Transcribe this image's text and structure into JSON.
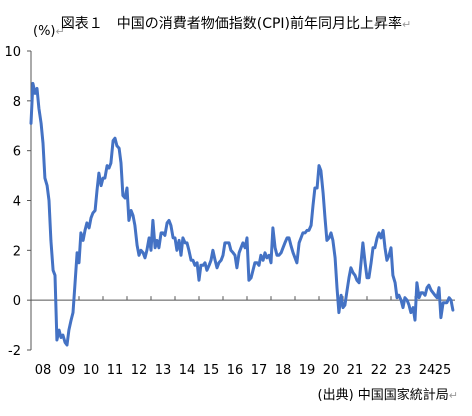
{
  "title": "図表１　中国の消費者物価指数(CPI)前年同月比上昇率",
  "title_mark": "↵",
  "unit_label": "(%)",
  "unit_mark": "↵",
  "source": "(出典) 中国国家統計局",
  "source_mark": "↵",
  "colors": {
    "line": "#4472C4",
    "axis": "#555555",
    "text": "#000000"
  },
  "chart_data": {
    "type": "line",
    "title": "図表１　中国の消費者物価指数(CPI)前年同月比上昇率",
    "xlabel": "",
    "ylabel": "(%)",
    "ylim": [
      -2,
      10
    ],
    "xlim": [
      2008,
      2025.667
    ],
    "yticks": [
      -2,
      0,
      2,
      4,
      6,
      8,
      10
    ],
    "xtick_labels": [
      "08",
      "09",
      "10",
      "11",
      "12",
      "13",
      "14",
      "15",
      "16",
      "17",
      "18",
      "19",
      "20",
      "21",
      "22",
      "23",
      "24",
      "25"
    ],
    "grid": false,
    "legend": "none",
    "x_unit": "year (monthly data)",
    "series": [
      {
        "points": [
          [
            2008.0,
            7.1
          ],
          [
            2008.08,
            8.7
          ],
          [
            2008.17,
            8.3
          ],
          [
            2008.25,
            8.5
          ],
          [
            2008.33,
            7.7
          ],
          [
            2008.42,
            7.1
          ],
          [
            2008.5,
            6.3
          ],
          [
            2008.58,
            4.9
          ],
          [
            2008.67,
            4.6
          ],
          [
            2008.75,
            4.0
          ],
          [
            2008.83,
            2.4
          ],
          [
            2008.92,
            1.2
          ],
          [
            2009.0,
            1.0
          ],
          [
            2009.08,
            -1.6
          ],
          [
            2009.17,
            -1.2
          ],
          [
            2009.25,
            -1.5
          ],
          [
            2009.33,
            -1.4
          ],
          [
            2009.42,
            -1.7
          ],
          [
            2009.5,
            -1.8
          ],
          [
            2009.58,
            -1.2
          ],
          [
            2009.67,
            -0.8
          ],
          [
            2009.75,
            -0.5
          ],
          [
            2009.83,
            0.6
          ],
          [
            2009.92,
            1.9
          ],
          [
            2010.0,
            1.5
          ],
          [
            2010.08,
            2.7
          ],
          [
            2010.17,
            2.4
          ],
          [
            2010.25,
            2.8
          ],
          [
            2010.33,
            3.1
          ],
          [
            2010.42,
            2.9
          ],
          [
            2010.5,
            3.3
          ],
          [
            2010.58,
            3.5
          ],
          [
            2010.67,
            3.6
          ],
          [
            2010.75,
            4.4
          ],
          [
            2010.83,
            5.1
          ],
          [
            2010.92,
            4.6
          ],
          [
            2011.0,
            4.9
          ],
          [
            2011.08,
            4.9
          ],
          [
            2011.17,
            5.4
          ],
          [
            2011.25,
            5.3
          ],
          [
            2011.33,
            5.5
          ],
          [
            2011.42,
            6.4
          ],
          [
            2011.5,
            6.5
          ],
          [
            2011.58,
            6.2
          ],
          [
            2011.67,
            6.1
          ],
          [
            2011.75,
            5.5
          ],
          [
            2011.83,
            4.2
          ],
          [
            2011.92,
            4.1
          ],
          [
            2012.0,
            4.5
          ],
          [
            2012.08,
            3.2
          ],
          [
            2012.17,
            3.6
          ],
          [
            2012.25,
            3.4
          ],
          [
            2012.33,
            3.0
          ],
          [
            2012.42,
            2.2
          ],
          [
            2012.5,
            1.8
          ],
          [
            2012.58,
            2.0
          ],
          [
            2012.67,
            1.9
          ],
          [
            2012.75,
            1.7
          ],
          [
            2012.83,
            2.0
          ],
          [
            2012.92,
            2.5
          ],
          [
            2013.0,
            2.0
          ],
          [
            2013.08,
            3.2
          ],
          [
            2013.17,
            2.1
          ],
          [
            2013.25,
            2.4
          ],
          [
            2013.33,
            2.1
          ],
          [
            2013.42,
            2.7
          ],
          [
            2013.5,
            2.7
          ],
          [
            2013.58,
            2.6
          ],
          [
            2013.67,
            3.1
          ],
          [
            2013.75,
            3.2
          ],
          [
            2013.83,
            3.0
          ],
          [
            2013.92,
            2.5
          ],
          [
            2014.0,
            2.5
          ],
          [
            2014.08,
            2.0
          ],
          [
            2014.17,
            2.4
          ],
          [
            2014.25,
            1.8
          ],
          [
            2014.33,
            2.5
          ],
          [
            2014.42,
            2.3
          ],
          [
            2014.5,
            2.3
          ],
          [
            2014.58,
            2.0
          ],
          [
            2014.67,
            1.6
          ],
          [
            2014.75,
            1.6
          ],
          [
            2014.83,
            1.4
          ],
          [
            2014.92,
            1.5
          ],
          [
            2015.0,
            0.8
          ],
          [
            2015.08,
            1.4
          ],
          [
            2015.17,
            1.4
          ],
          [
            2015.25,
            1.5
          ],
          [
            2015.33,
            1.2
          ],
          [
            2015.42,
            1.4
          ],
          [
            2015.5,
            1.6
          ],
          [
            2015.58,
            2.0
          ],
          [
            2015.67,
            1.6
          ],
          [
            2015.75,
            1.3
          ],
          [
            2015.83,
            1.5
          ],
          [
            2015.92,
            1.6
          ],
          [
            2016.0,
            1.8
          ],
          [
            2016.08,
            2.3
          ],
          [
            2016.17,
            2.3
          ],
          [
            2016.25,
            2.3
          ],
          [
            2016.33,
            2.0
          ],
          [
            2016.42,
            1.9
          ],
          [
            2016.5,
            1.8
          ],
          [
            2016.58,
            1.3
          ],
          [
            2016.67,
            1.9
          ],
          [
            2016.75,
            2.1
          ],
          [
            2016.83,
            2.3
          ],
          [
            2016.92,
            2.1
          ],
          [
            2017.0,
            2.5
          ],
          [
            2017.08,
            0.8
          ],
          [
            2017.17,
            0.9
          ],
          [
            2017.25,
            1.2
          ],
          [
            2017.33,
            1.5
          ],
          [
            2017.42,
            1.5
          ],
          [
            2017.5,
            1.4
          ],
          [
            2017.58,
            1.8
          ],
          [
            2017.67,
            1.6
          ],
          [
            2017.75,
            1.9
          ],
          [
            2017.83,
            1.7
          ],
          [
            2017.92,
            1.8
          ],
          [
            2018.0,
            1.5
          ],
          [
            2018.08,
            2.9
          ],
          [
            2018.17,
            2.1
          ],
          [
            2018.25,
            1.8
          ],
          [
            2018.33,
            1.8
          ],
          [
            2018.42,
            1.9
          ],
          [
            2018.5,
            2.1
          ],
          [
            2018.58,
            2.3
          ],
          [
            2018.67,
            2.5
          ],
          [
            2018.75,
            2.5
          ],
          [
            2018.83,
            2.2
          ],
          [
            2018.92,
            1.9
          ],
          [
            2019.0,
            1.7
          ],
          [
            2019.08,
            1.5
          ],
          [
            2019.17,
            2.3
          ],
          [
            2019.25,
            2.5
          ],
          [
            2019.33,
            2.7
          ],
          [
            2019.42,
            2.7
          ],
          [
            2019.5,
            2.8
          ],
          [
            2019.58,
            2.8
          ],
          [
            2019.67,
            3.0
          ],
          [
            2019.75,
            3.8
          ],
          [
            2019.83,
            4.5
          ],
          [
            2019.92,
            4.5
          ],
          [
            2020.0,
            5.4
          ],
          [
            2020.08,
            5.2
          ],
          [
            2020.17,
            4.3
          ],
          [
            2020.25,
            3.3
          ],
          [
            2020.33,
            2.4
          ],
          [
            2020.42,
            2.5
          ],
          [
            2020.5,
            2.7
          ],
          [
            2020.58,
            2.4
          ],
          [
            2020.67,
            1.7
          ],
          [
            2020.75,
            0.5
          ],
          [
            2020.83,
            -0.5
          ],
          [
            2020.92,
            0.2
          ],
          [
            2021.0,
            -0.3
          ],
          [
            2021.08,
            -0.2
          ],
          [
            2021.17,
            0.4
          ],
          [
            2021.25,
            0.9
          ],
          [
            2021.33,
            1.3
          ],
          [
            2021.42,
            1.1
          ],
          [
            2021.5,
            1.0
          ],
          [
            2021.58,
            0.8
          ],
          [
            2021.67,
            0.7
          ],
          [
            2021.75,
            1.5
          ],
          [
            2021.83,
            2.3
          ],
          [
            2021.92,
            1.5
          ],
          [
            2022.0,
            0.9
          ],
          [
            2022.08,
            0.9
          ],
          [
            2022.17,
            1.5
          ],
          [
            2022.25,
            2.1
          ],
          [
            2022.33,
            2.1
          ],
          [
            2022.42,
            2.5
          ],
          [
            2022.5,
            2.7
          ],
          [
            2022.58,
            2.5
          ],
          [
            2022.67,
            2.8
          ],
          [
            2022.75,
            2.1
          ],
          [
            2022.83,
            1.6
          ],
          [
            2022.92,
            1.8
          ],
          [
            2023.0,
            2.1
          ],
          [
            2023.08,
            1.0
          ],
          [
            2023.17,
            0.7
          ],
          [
            2023.25,
            0.1
          ],
          [
            2023.33,
            0.2
          ],
          [
            2023.42,
            0.0
          ],
          [
            2023.5,
            -0.3
          ],
          [
            2023.58,
            0.1
          ],
          [
            2023.67,
            0.0
          ],
          [
            2023.75,
            -0.2
          ],
          [
            2023.83,
            -0.5
          ],
          [
            2023.92,
            -0.3
          ],
          [
            2024.0,
            -0.8
          ],
          [
            2024.08,
            0.7
          ],
          [
            2024.17,
            0.1
          ],
          [
            2024.25,
            0.3
          ],
          [
            2024.33,
            0.3
          ],
          [
            2024.42,
            0.2
          ],
          [
            2024.5,
            0.5
          ],
          [
            2024.58,
            0.6
          ],
          [
            2024.67,
            0.4
          ],
          [
            2024.75,
            0.3
          ],
          [
            2024.83,
            0.2
          ],
          [
            2024.92,
            0.1
          ],
          [
            2025.0,
            0.5
          ],
          [
            2025.08,
            -0.7
          ],
          [
            2025.17,
            -0.1
          ],
          [
            2025.25,
            -0.1
          ],
          [
            2025.33,
            -0.1
          ],
          [
            2025.42,
            0.1
          ],
          [
            2025.5,
            0.0
          ],
          [
            2025.58,
            -0.4
          ]
        ]
      }
    ]
  }
}
